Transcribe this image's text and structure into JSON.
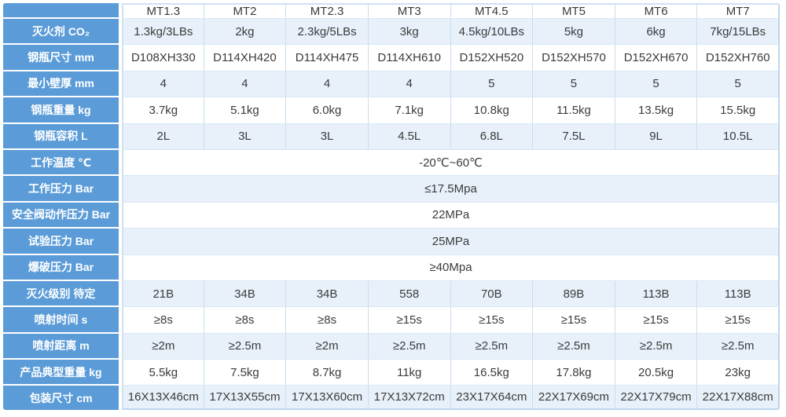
{
  "table": {
    "corner_label": "",
    "columns": [
      "MT1.3",
      "MT2",
      "MT2.3",
      "MT3",
      "MT4.5",
      "MT5",
      "MT6",
      "MT7"
    ],
    "rows": [
      {
        "label": "灭火剂 CO₂",
        "values": [
          "1.3kg/3LBs",
          "2kg",
          "2.3kg/5LBs",
          "3kg",
          "4.5kg/10LBs",
          "5kg",
          "6kg",
          "7kg/15LBs"
        ]
      },
      {
        "label": "钢瓶尺寸 mm",
        "values": [
          "D108XH330",
          "D114XH420",
          "D114XH475",
          "D114XH610",
          "D152XH520",
          "D152XH570",
          "D152XH670",
          "D152XH760"
        ]
      },
      {
        "label": "最小壁厚 mm",
        "values": [
          "4",
          "4",
          "4",
          "4",
          "5",
          "5",
          "5",
          "5"
        ]
      },
      {
        "label": "钢瓶重量 kg",
        "values": [
          "3.7kg",
          "5.1kg",
          "6.0kg",
          "7.1kg",
          "10.8kg",
          "11.5kg",
          "13.5kg",
          "15.5kg"
        ]
      },
      {
        "label": "钢瓶容积 L",
        "values": [
          "2L",
          "3L",
          "3L",
          "4.5L",
          "6.8L",
          "7.5L",
          "9L",
          "10.5L"
        ]
      },
      {
        "label": "工作温度 ℃",
        "merged": "-20℃~60℃"
      },
      {
        "label": "工作压力 Bar",
        "merged": "≤17.5Mpa"
      },
      {
        "label": "安全阀动作压力 Bar",
        "merged": "22MPa"
      },
      {
        "label": "试验压力 Bar",
        "merged": "25MPa"
      },
      {
        "label": "爆破压力 Bar",
        "merged": "≥40Mpa"
      },
      {
        "label": "灭火级别 待定",
        "values": [
          "21B",
          "34B",
          "34B",
          "558",
          "70B",
          "89B",
          "113B",
          "113B"
        ]
      },
      {
        "label": "喷射时间 s",
        "values": [
          "≥8s",
          "≥8s",
          "≥8s",
          "≥15s",
          "≥15s",
          "≥15s",
          "≥15s",
          "≥15s"
        ]
      },
      {
        "label": "喷射距离 m",
        "values": [
          "≥2m",
          "≥2.5m",
          "≥2m",
          "≥2.5m",
          "≥2.5m",
          "≥2.5m",
          "≥2.5m",
          "≥2.5m"
        ]
      },
      {
        "label": "产品典型重量 kg",
        "values": [
          "5.5kg",
          "7.5kg",
          "8.7kg",
          "11kg",
          "16.5kg",
          "17.8kg",
          "20.5kg",
          "23kg"
        ]
      },
      {
        "label": "包装尺寸 cm",
        "values": [
          "16X13X46cm",
          "17X13X55cm",
          "17X13X60cm",
          "17X13X72cm",
          "23X17X64cm",
          "22X17X69cm",
          "22X17X79cm",
          "22X17X88cm"
        ]
      }
    ],
    "colors": {
      "label_bg": "#5b9cd8",
      "label_text": "#ffffff",
      "row_bg": "#ffffff",
      "row_alt_bg": "#e8f1fa",
      "border": "#c9def0",
      "outer_border": "#bcd6ec",
      "text": "#3b3b3b"
    }
  }
}
